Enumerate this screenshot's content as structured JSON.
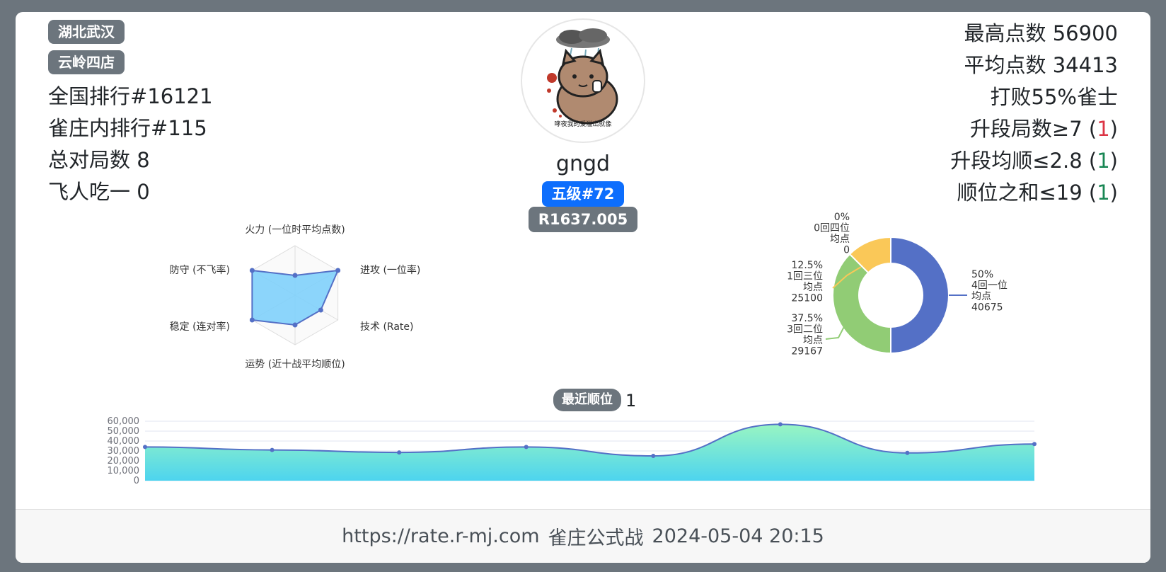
{
  "tags": [
    "湖北武汉",
    "云岭四店"
  ],
  "left_stats": [
    {
      "label": "全国排行",
      "value": "#16121"
    },
    {
      "label": "雀庄内排行",
      "value": "#115"
    },
    {
      "label": "总对局数",
      "value": "8"
    },
    {
      "label": "飞人吃一",
      "value": "0"
    }
  ],
  "right_stats": {
    "max_points": {
      "label": "最高点数",
      "value": "56900"
    },
    "avg_points": {
      "label": "平均点数",
      "value": "34413"
    },
    "beat": "打败55%雀士",
    "promo_games": {
      "label": "升段局数≥7",
      "count": "1"
    },
    "promo_avg": {
      "label": "升段均顺≤2.8",
      "count": "1"
    },
    "rank_sum": {
      "label": "顺位之和≤19",
      "count": "1"
    }
  },
  "profile": {
    "username": "gngd",
    "level_badge": "五级#72",
    "rating_badge": "R1637.005",
    "avatar_caption": "哮夜我的爱溢出就像"
  },
  "radar": {
    "axes": [
      "火力 (一位时平均点数)",
      "进攻 (一位率)",
      "技术 (Rate)",
      "运势 (近十战平均顺位)",
      "稳定 (连对率)",
      "防守 (不飞率)"
    ],
    "values": [
      0.4,
      1.0,
      0.6,
      0.6,
      1.0,
      1.0
    ],
    "fill_color": "#7fd0fb",
    "line_color": "#5470c6"
  },
  "donut": {
    "slices": [
      {
        "pct": "50%",
        "label": "4回一位",
        "avg_label": "均点",
        "avg": "40675",
        "value": 50,
        "color": "#5470c6"
      },
      {
        "pct": "37.5%",
        "label": "3回二位",
        "avg_label": "均点",
        "avg": "29167",
        "value": 37.5,
        "color": "#91cc75"
      },
      {
        "pct": "12.5%",
        "label": "1回三位",
        "avg_label": "均点",
        "avg": "25100",
        "value": 12.5,
        "color": "#fac858"
      },
      {
        "pct": "0%",
        "label": "0回四位",
        "avg_label": "均点",
        "avg": "0",
        "value": 0,
        "color": "#ee6666"
      }
    ]
  },
  "recent": {
    "label": "最近顺位",
    "value": "1"
  },
  "chart_data": {
    "type": "area",
    "title": "",
    "xlabel": "",
    "ylabel": "",
    "y_ticks": [
      "0",
      "10,000",
      "20,000",
      "30,000",
      "40,000",
      "50,000",
      "60,000"
    ],
    "ylim": [
      0,
      60000
    ],
    "series": [
      {
        "values": [
          34000,
          31000,
          28500,
          34000,
          25000,
          56900,
          28000,
          37000
        ]
      }
    ],
    "line_color": "#5470c6",
    "fill_top_color": "#99f5c2",
    "fill_bottom_color": "#4dd4ef"
  },
  "footer": {
    "url": "https://rate.r-mj.com",
    "title": "雀庄公式战",
    "datetime": "2024-05-04 20:15"
  }
}
